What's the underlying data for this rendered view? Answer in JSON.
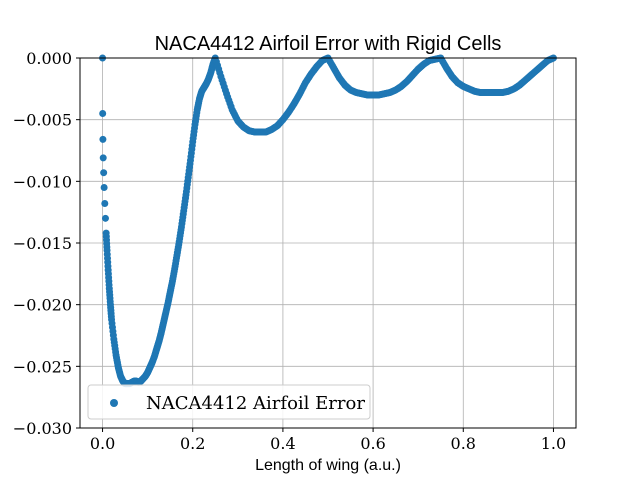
{
  "chart_data": {
    "type": "scatter",
    "title": "NACA4412 Airfoil Error with Rigid Cells",
    "xlabel": "Length of wing (a.u.)",
    "ylabel": "",
    "xlim": [
      -0.05,
      1.05
    ],
    "ylim": [
      -0.03,
      0.0
    ],
    "xticks": [
      0.0,
      0.2,
      0.4,
      0.6,
      0.8,
      1.0
    ],
    "xtick_labels": [
      "0.0",
      "0.2",
      "0.4",
      "0.6",
      "0.8",
      "1.0"
    ],
    "yticks": [
      0.0,
      -0.005,
      -0.01,
      -0.015,
      -0.02,
      -0.025,
      -0.03
    ],
    "ytick_labels": [
      "0.000",
      "−0.005",
      "−0.010",
      "−0.015",
      "−0.020",
      "−0.025",
      "−0.030"
    ],
    "grid": true,
    "legend_position": "lower-left",
    "color": "#1f77b4",
    "series": [
      {
        "name": "NACA4412 Airfoil Error",
        "x": [
          0.0,
          0.0003,
          0.0008,
          0.0015,
          0.0025,
          0.0035,
          0.005,
          0.0065,
          0.008,
          0.01,
          0.0125,
          0.015,
          0.0175,
          0.02,
          0.025,
          0.03,
          0.035,
          0.04,
          0.045,
          0.05,
          0.055,
          0.06,
          0.065,
          0.07,
          0.075,
          0.08,
          0.085,
          0.09,
          0.095,
          0.1,
          0.105,
          0.11,
          0.115,
          0.12,
          0.125,
          0.13,
          0.135,
          0.14,
          0.145,
          0.15,
          0.155,
          0.16,
          0.165,
          0.17,
          0.175,
          0.18,
          0.185,
          0.19,
          0.195,
          0.2,
          0.205,
          0.21,
          0.215,
          0.22,
          0.225,
          0.23,
          0.235,
          0.24,
          0.245,
          0.25,
          0.2625,
          0.275,
          0.2875,
          0.3,
          0.3125,
          0.325,
          0.3375,
          0.35,
          0.3625,
          0.375,
          0.3875,
          0.4,
          0.4125,
          0.425,
          0.4375,
          0.45,
          0.4625,
          0.475,
          0.4875,
          0.5,
          0.5125,
          0.525,
          0.5375,
          0.55,
          0.5625,
          0.575,
          0.5875,
          0.6,
          0.6125,
          0.625,
          0.6375,
          0.65,
          0.6625,
          0.675,
          0.6875,
          0.7,
          0.7125,
          0.725,
          0.7375,
          0.75,
          0.7625,
          0.775,
          0.7875,
          0.8,
          0.8125,
          0.825,
          0.8375,
          0.85,
          0.8625,
          0.875,
          0.8875,
          0.9,
          0.9125,
          0.925,
          0.9375,
          0.95,
          0.9625,
          0.975,
          0.9875,
          1.0
        ],
        "y": [
          0.0,
          -0.0045,
          -0.0066,
          -0.0081,
          -0.0093,
          -0.0105,
          -0.0118,
          -0.013,
          -0.0142,
          -0.0156,
          -0.0172,
          -0.0187,
          -0.02,
          -0.0212,
          -0.0228,
          -0.0241,
          -0.0251,
          -0.0258,
          -0.0262,
          -0.0264,
          -0.0264,
          -0.0264,
          -0.0263,
          -0.0262,
          -0.0262,
          -0.0263,
          -0.0262,
          -0.026,
          -0.0258,
          -0.0255,
          -0.0251,
          -0.0247,
          -0.0242,
          -0.0236,
          -0.023,
          -0.0223,
          -0.0215,
          -0.0207,
          -0.0199,
          -0.019,
          -0.0181,
          -0.0171,
          -0.016,
          -0.0149,
          -0.0137,
          -0.0124,
          -0.0111,
          -0.0097,
          -0.0083,
          -0.0068,
          -0.0054,
          -0.0042,
          -0.0033,
          -0.0027,
          -0.0024,
          -0.0021,
          -0.0017,
          -0.0012,
          -0.0005,
          0.0,
          -0.0015,
          -0.0029,
          -0.0042,
          -0.0051,
          -0.0056,
          -0.0059,
          -0.006,
          -0.006,
          -0.006,
          -0.0058,
          -0.0055,
          -0.005,
          -0.0044,
          -0.0037,
          -0.0029,
          -0.002,
          -0.0013,
          -0.0007,
          -0.0002,
          0.0,
          -0.0008,
          -0.0016,
          -0.0022,
          -0.0026,
          -0.0028,
          -0.0029,
          -0.003,
          -0.003,
          -0.003,
          -0.0029,
          -0.0028,
          -0.0026,
          -0.0023,
          -0.0019,
          -0.0014,
          -0.0009,
          -0.0005,
          -0.0002,
          -0.0001,
          0.0,
          -0.0008,
          -0.0015,
          -0.002,
          -0.0023,
          -0.0025,
          -0.0027,
          -0.0028,
          -0.0028,
          -0.0028,
          -0.0028,
          -0.0028,
          -0.0027,
          -0.0025,
          -0.0022,
          -0.0018,
          -0.0014,
          -0.001,
          -0.0006,
          -0.0002,
          0.0
        ]
      }
    ]
  }
}
